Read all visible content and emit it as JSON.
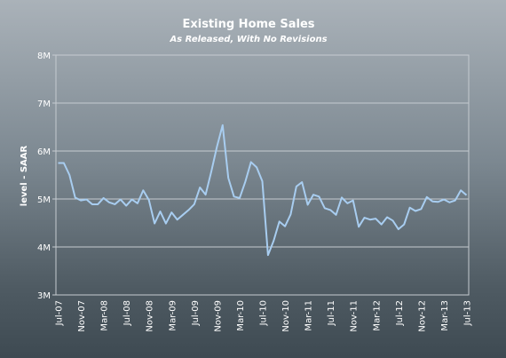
{
  "chart_data": {
    "type": "line",
    "title": "Existing Home Sales",
    "subtitle": "As Released, With No Revisions",
    "ylabel": "level - SAAR",
    "xlabel": "",
    "ylim": [
      3,
      8
    ],
    "yticks": [
      3,
      4,
      5,
      6,
      7,
      8
    ],
    "ytick_labels": [
      "3M",
      "4M",
      "5M",
      "6M",
      "7M",
      "8M"
    ],
    "xtick_labels": [
      "Jul-07",
      "Nov-07",
      "Mar-08",
      "Jul-08",
      "Nov-08",
      "Mar-09",
      "Jul-09",
      "Nov-09",
      "Mar-10",
      "Jul-10",
      "Nov-10",
      "Mar-11",
      "Jul-11",
      "Nov-11",
      "Mar-12",
      "Jul-12",
      "Nov-12",
      "Mar-13",
      "Jul-13"
    ],
    "grid": true,
    "legend": "none",
    "line_color": "#a8cdf0",
    "series": [
      {
        "values": [
          5.75,
          5.75,
          5.5,
          5.03,
          4.97,
          4.99,
          4.89,
          4.89,
          5.02,
          4.93,
          4.89,
          4.99,
          4.86,
          4.99,
          4.91,
          5.18,
          4.98,
          4.49,
          4.74,
          4.49,
          4.72,
          4.57,
          4.67,
          4.77,
          4.89,
          5.24,
          5.09,
          5.57,
          6.09,
          6.54,
          5.44,
          5.05,
          5.02,
          5.36,
          5.77,
          5.66,
          5.37,
          3.83,
          4.13,
          4.53,
          4.43,
          4.68,
          5.26,
          5.35,
          4.88,
          5.09,
          5.05,
          4.81,
          4.77,
          4.67,
          5.03,
          4.91,
          4.97,
          4.42,
          4.61,
          4.57,
          4.59,
          4.47,
          4.62,
          4.55,
          4.37,
          4.47,
          4.82,
          4.75,
          4.79,
          5.04,
          4.95,
          4.94,
          4.99,
          4.93,
          4.97,
          5.18,
          5.08
        ]
      }
    ]
  }
}
